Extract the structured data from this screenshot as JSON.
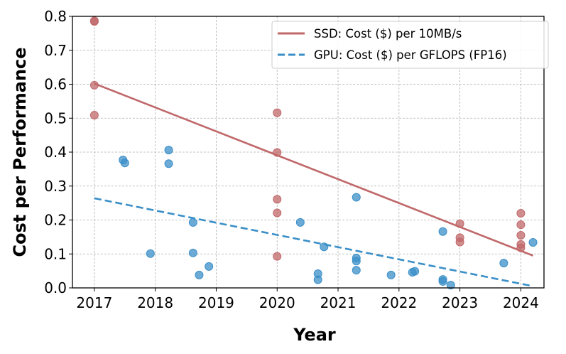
{
  "chart_data": {
    "type": "scatter",
    "xlabel": "Year",
    "ylabel": "Cost per Performance",
    "xlim": [
      2016.64,
      2024.38
    ],
    "ylim": [
      0.0,
      0.8
    ],
    "xticks": [
      2017,
      2018,
      2019,
      2020,
      2021,
      2022,
      2023,
      2024
    ],
    "yticks": [
      0.0,
      0.1,
      0.2,
      0.3,
      0.4,
      0.5,
      0.6,
      0.7,
      0.8
    ],
    "ytick_labels": [
      "0.0",
      "0.1",
      "0.2",
      "0.3",
      "0.4",
      "0.5",
      "0.6",
      "0.7",
      "0.8"
    ],
    "grid": true,
    "legend_position": "top-right",
    "series": [
      {
        "name": "SSD: Cost ($) per 10MB/s",
        "color": "#c0686a",
        "line_style": "solid",
        "trend": {
          "x": [
            2017.0,
            2024.2
          ],
          "y": [
            0.602,
            0.095
          ]
        },
        "points": [
          {
            "x": 2017.0,
            "y": 0.787
          },
          {
            "x": 2017.0,
            "y": 0.785
          },
          {
            "x": 2017.0,
            "y": 0.597
          },
          {
            "x": 2017.0,
            "y": 0.509
          },
          {
            "x": 2020.0,
            "y": 0.516
          },
          {
            "x": 2020.0,
            "y": 0.399
          },
          {
            "x": 2020.0,
            "y": 0.261
          },
          {
            "x": 2020.0,
            "y": 0.221
          },
          {
            "x": 2020.0,
            "y": 0.093
          },
          {
            "x": 2023.0,
            "y": 0.189
          },
          {
            "x": 2023.0,
            "y": 0.148
          },
          {
            "x": 2023.0,
            "y": 0.135
          },
          {
            "x": 2024.0,
            "y": 0.22
          },
          {
            "x": 2024.0,
            "y": 0.186
          },
          {
            "x": 2024.0,
            "y": 0.155
          },
          {
            "x": 2024.0,
            "y": 0.128
          },
          {
            "x": 2024.0,
            "y": 0.118
          }
        ]
      },
      {
        "name": "GPU: Cost ($) per GFLOPS (FP16)",
        "color": "#3b8fc8",
        "line_style": "dashed",
        "trend": {
          "x": [
            2017.0,
            2024.2
          ],
          "y": [
            0.264,
            0.005
          ]
        },
        "points": [
          {
            "x": 2017.47,
            "y": 0.377
          },
          {
            "x": 2017.5,
            "y": 0.368
          },
          {
            "x": 2017.92,
            "y": 0.101
          },
          {
            "x": 2018.22,
            "y": 0.406
          },
          {
            "x": 2018.22,
            "y": 0.366
          },
          {
            "x": 2018.62,
            "y": 0.193
          },
          {
            "x": 2018.62,
            "y": 0.103
          },
          {
            "x": 2018.72,
            "y": 0.038
          },
          {
            "x": 2018.88,
            "y": 0.063
          },
          {
            "x": 2020.38,
            "y": 0.193
          },
          {
            "x": 2020.67,
            "y": 0.042
          },
          {
            "x": 2020.67,
            "y": 0.024
          },
          {
            "x": 2020.77,
            "y": 0.121
          },
          {
            "x": 2021.3,
            "y": 0.267
          },
          {
            "x": 2021.3,
            "y": 0.088
          },
          {
            "x": 2021.3,
            "y": 0.079
          },
          {
            "x": 2021.3,
            "y": 0.052
          },
          {
            "x": 2021.87,
            "y": 0.038
          },
          {
            "x": 2022.22,
            "y": 0.046
          },
          {
            "x": 2022.26,
            "y": 0.049
          },
          {
            "x": 2022.72,
            "y": 0.166
          },
          {
            "x": 2022.72,
            "y": 0.025
          },
          {
            "x": 2022.72,
            "y": 0.019
          },
          {
            "x": 2022.85,
            "y": 0.008
          },
          {
            "x": 2023.72,
            "y": 0.073
          },
          {
            "x": 2024.2,
            "y": 0.134
          }
        ]
      }
    ]
  }
}
